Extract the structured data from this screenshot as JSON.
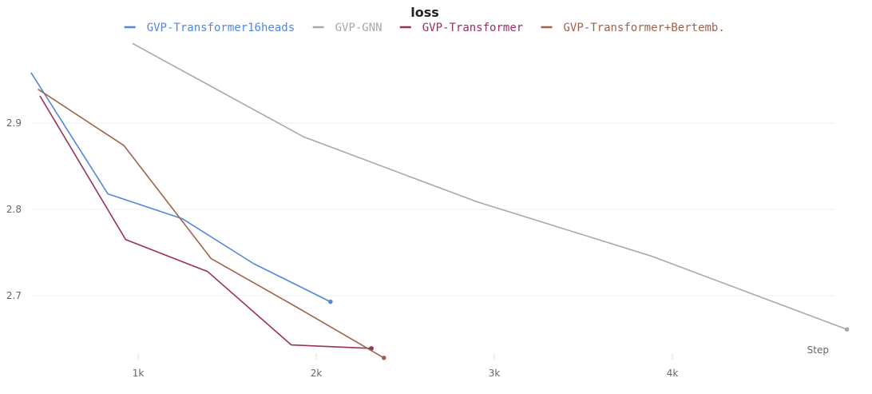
{
  "chart_data": {
    "type": "line",
    "title": "loss",
    "xlabel": "Step",
    "ylabel": "",
    "xlim": [
      0,
      5000
    ],
    "ylim": [
      2.625,
      2.98
    ],
    "xticks": [
      {
        "value": 1000,
        "label": "1k"
      },
      {
        "value": 2000,
        "label": "2k"
      },
      {
        "value": 3000,
        "label": "3k"
      },
      {
        "value": 4000,
        "label": "4k"
      }
    ],
    "yticks": [
      {
        "value": 2.7,
        "label": "2.7"
      },
      {
        "value": 2.8,
        "label": "2.8"
      },
      {
        "value": 2.9,
        "label": "2.9"
      }
    ],
    "grid": true,
    "legend": "top",
    "series": [
      {
        "name": "GVP-Transformer16heads",
        "color": "#5387dd",
        "x": [
          400,
          830,
          1250,
          1650,
          2080
        ],
        "y": [
          2.958,
          2.818,
          2.789,
          2.737,
          2.693
        ]
      },
      {
        "name": "GVP-GNN",
        "color": "#a9a9a9",
        "x": [
          970,
          1930,
          2900,
          3880,
          4980
        ],
        "y": [
          2.992,
          2.884,
          2.809,
          2.746,
          2.661
        ]
      },
      {
        "name": "GVP-Transformer",
        "color": "#9c2f62",
        "x": [
          450,
          930,
          1390,
          1860,
          2310
        ],
        "y": [
          2.931,
          2.765,
          2.728,
          2.643,
          2.639
        ]
      },
      {
        "name": "GVP-Transformer+Bertemb.",
        "color": "#a0634a",
        "x": [
          440,
          920,
          1410,
          1880,
          2380
        ],
        "y": [
          2.939,
          2.874,
          2.743,
          2.688,
          2.628
        ]
      }
    ]
  }
}
